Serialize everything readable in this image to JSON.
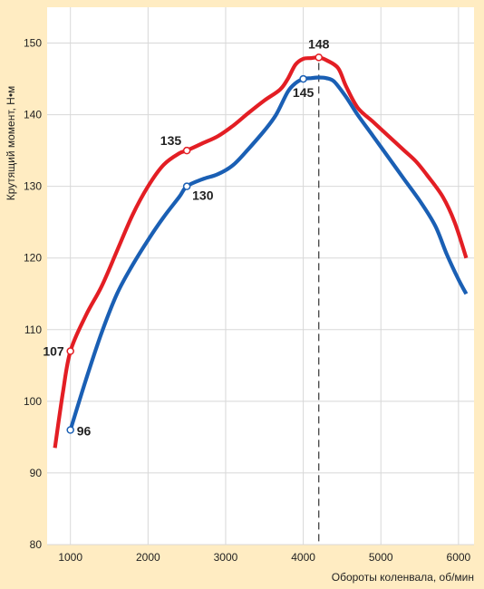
{
  "chart_data": {
    "type": "line",
    "title": "",
    "xlabel": "Обороты коленвала, об/мин",
    "ylabel": "Крутящий момент, Н•м",
    "xlim": [
      700,
      6200
    ],
    "ylim": [
      80,
      155
    ],
    "x_ticks": [
      "1000",
      "2000",
      "3000",
      "4000",
      "5000",
      "6000"
    ],
    "y_ticks": [
      "80",
      "90",
      "100",
      "110",
      "120",
      "130",
      "140",
      "150"
    ],
    "grid": "vertical and horizontal",
    "colors": {
      "background": "#ffecc2",
      "plot_background": "#ffffff",
      "grid": "#d8d8d8",
      "red": "#e31e24",
      "blue": "#1a5fb4",
      "marker_line": "#333333"
    },
    "series": [
      {
        "color": "#e31e24",
        "points": [
          [
            800,
            93.5
          ],
          [
            900,
            101
          ],
          [
            1000,
            107
          ],
          [
            1200,
            112
          ],
          [
            1400,
            116
          ],
          [
            1600,
            121
          ],
          [
            1800,
            126
          ],
          [
            2000,
            130
          ],
          [
            2200,
            133
          ],
          [
            2400,
            134.6
          ],
          [
            2500,
            135
          ],
          [
            2700,
            136
          ],
          [
            2900,
            137
          ],
          [
            3100,
            138.5
          ],
          [
            3300,
            140.3
          ],
          [
            3500,
            142
          ],
          [
            3700,
            143.5
          ],
          [
            3800,
            145
          ],
          [
            3900,
            147
          ],
          [
            4000,
            147.8
          ],
          [
            4100,
            147.9
          ],
          [
            4200,
            148
          ],
          [
            4300,
            147.6
          ],
          [
            4450,
            146.5
          ],
          [
            4550,
            144
          ],
          [
            4700,
            141
          ],
          [
            4900,
            139
          ],
          [
            5100,
            137
          ],
          [
            5300,
            135
          ],
          [
            5450,
            133.5
          ],
          [
            5600,
            131.5
          ],
          [
            5800,
            128.5
          ],
          [
            5950,
            125
          ],
          [
            6100,
            120
          ]
        ]
      },
      {
        "color": "#1a5fb4",
        "points": [
          [
            1000,
            96
          ],
          [
            1200,
            103
          ],
          [
            1400,
            109.5
          ],
          [
            1600,
            115
          ],
          [
            1800,
            119
          ],
          [
            2000,
            122.5
          ],
          [
            2200,
            125.7
          ],
          [
            2400,
            128.5
          ],
          [
            2500,
            130
          ],
          [
            2700,
            131
          ],
          [
            2900,
            131.7
          ],
          [
            3100,
            133
          ],
          [
            3300,
            135.3
          ],
          [
            3500,
            137.8
          ],
          [
            3650,
            140
          ],
          [
            3800,
            143.2
          ],
          [
            3900,
            144.4
          ],
          [
            4000,
            145
          ],
          [
            4100,
            145.1
          ],
          [
            4200,
            145.2
          ],
          [
            4300,
            145.1
          ],
          [
            4400,
            144.6
          ],
          [
            4550,
            142.5
          ],
          [
            4700,
            140
          ],
          [
            4900,
            137
          ],
          [
            5100,
            134
          ],
          [
            5300,
            131
          ],
          [
            5500,
            128
          ],
          [
            5700,
            124.5
          ],
          [
            5850,
            120.5
          ],
          [
            6000,
            117
          ],
          [
            6100,
            115
          ]
        ]
      }
    ],
    "annotations": [
      {
        "label": "107",
        "x": 1000,
        "y": 107,
        "series": "red",
        "position": "left"
      },
      {
        "label": "135",
        "x": 2500,
        "y": 135,
        "series": "red",
        "position": "above-left"
      },
      {
        "label": "148",
        "x": 4200,
        "y": 148,
        "series": "red",
        "position": "above"
      },
      {
        "label": "96",
        "x": 1000,
        "y": 96,
        "series": "blue",
        "position": "right"
      },
      {
        "label": "130",
        "x": 2500,
        "y": 130,
        "series": "blue",
        "position": "below-right"
      },
      {
        "label": "145",
        "x": 4000,
        "y": 145,
        "series": "blue",
        "position": "below"
      }
    ],
    "reference_line": {
      "x": 4200,
      "style": "dashed"
    }
  }
}
